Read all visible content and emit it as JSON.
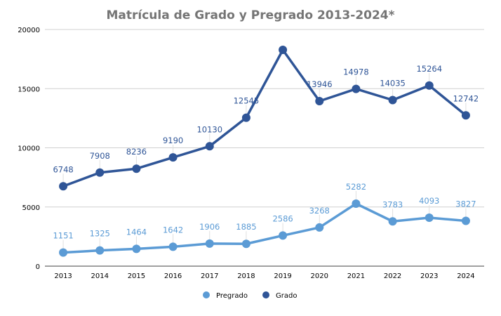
{
  "chart_data": {
    "type": "line",
    "title": "Matrícula de Grado y Pregrado 2013-2024*",
    "xlabel": "",
    "ylabel": "",
    "ylim": [
      0,
      20000
    ],
    "yticks": [
      "0",
      "5000",
      "10000",
      "15000",
      "20000"
    ],
    "ytick_values": [
      0,
      5000,
      10000,
      15000,
      20000
    ],
    "grid": true,
    "categories": [
      "2013",
      "2014",
      "2015",
      "2016",
      "2017",
      "2018",
      "2019",
      "2020",
      "2021",
      "2022",
      "2023",
      "2024"
    ],
    "legend_position": "bottom",
    "series": [
      {
        "name": "Pregrado",
        "color": "#5B9BD5",
        "values": [
          1151,
          1325,
          1464,
          1642,
          1906,
          1885,
          2586,
          3268,
          5282,
          3783,
          4093,
          3827
        ],
        "labels": [
          "1151",
          "1325",
          "1464",
          "1642",
          "1906",
          "1885",
          "2586",
          "3268",
          "5282",
          "3783",
          "4093",
          "3827"
        ]
      },
      {
        "name": "Grado",
        "color": "#2F5597",
        "values": [
          6748,
          7908,
          8236,
          9190,
          10130,
          12545,
          18280,
          13946,
          14978,
          14035,
          15264,
          12742
        ],
        "labels": [
          "6748",
          "7908",
          "8236",
          "9190",
          "10130",
          "12545",
          "",
          "13946",
          "14978",
          "14035",
          "15264",
          "12742"
        ]
      }
    ]
  }
}
